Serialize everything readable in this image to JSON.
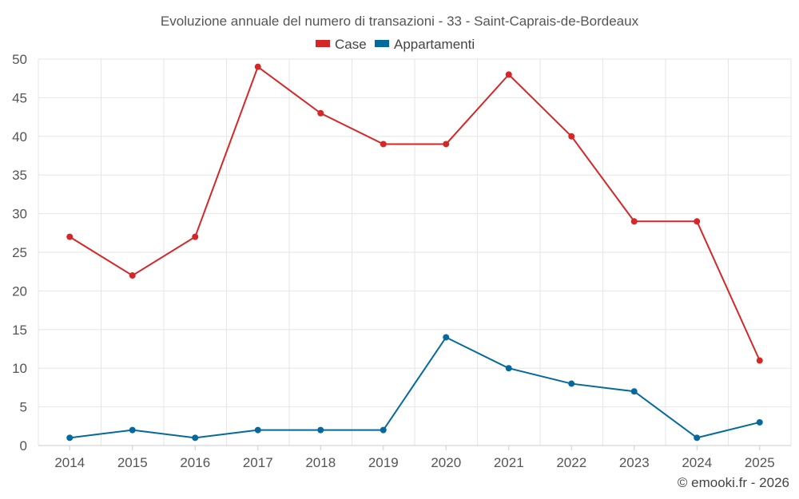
{
  "chart_data": {
    "type": "line",
    "title": "Evoluzione annuale del numero di transazioni - 33 - Saint-Caprais-de-Bordeaux",
    "categories": [
      "2014",
      "2015",
      "2016",
      "2017",
      "2018",
      "2019",
      "2020",
      "2021",
      "2022",
      "2023",
      "2024",
      "2025"
    ],
    "series": [
      {
        "name": "Case",
        "color": "#d62728",
        "values": [
          27,
          22,
          27,
          49,
          43,
          39,
          39,
          48,
          40,
          29,
          29,
          11
        ]
      },
      {
        "name": "Appartamenti",
        "color": "#04699d",
        "values": [
          1,
          2,
          1,
          2,
          2,
          2,
          14,
          10,
          8,
          7,
          1,
          3
        ]
      }
    ],
    "ylim": [
      0,
      50
    ],
    "yticks": [
      "0",
      "5",
      "10",
      "15",
      "20",
      "25",
      "30",
      "35",
      "40",
      "45",
      "50"
    ],
    "legend_position": "top-center",
    "grid": true
  },
  "credit": "© emooki.fr - 2026"
}
